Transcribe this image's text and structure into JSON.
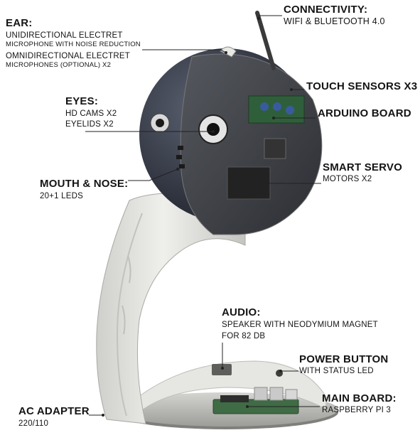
{
  "labels": {
    "ear": {
      "title": "EAR:",
      "line1": "UNIDIRECTIONAL ELECTRET",
      "line2": "MICROPHONE WITH NOISE REDUCTION",
      "line3": "OMNIDIRECTIONAL ELECTRET",
      "line4": "MICROPHONES (OPTIONAL) X2"
    },
    "connectivity": {
      "title": "CONNECTIVITY:",
      "line1": "WIFI & BLUETOOTH 4.0"
    },
    "touch_sensors": {
      "title": "TOUCH SENSORS X3"
    },
    "eyes": {
      "title": "EYES:",
      "line1": "HD CAMS X2",
      "line2": "EYELIDS X2"
    },
    "arduino_board": {
      "title": "ARDUINO BOARD"
    },
    "smart_servo": {
      "title": "SMART SERVO",
      "line1": "MOTORS X2"
    },
    "mouth_nose": {
      "title": "MOUTH & NOSE:",
      "line1": "20+1 LEDS"
    },
    "audio": {
      "title": "AUDIO:",
      "line1": "SPEAKER WITH NEODYMIUM MAGNET",
      "line2": "FOR 82 DB"
    },
    "power_button": {
      "title": "POWER BUTTON",
      "line1": "WITH STATUS LED"
    },
    "main_board": {
      "title": "MAIN BOARD:",
      "line1": "RASPBERRY PI 3"
    },
    "ac_adapter": {
      "title": "AC ADAPTER",
      "line1": "220/110"
    }
  },
  "colors": {
    "background": "#ffffff",
    "text": "#141414",
    "head_shell": "#3a3f4c",
    "stand_body": "#e3e3df",
    "pcb_green": "#3f6b45"
  }
}
